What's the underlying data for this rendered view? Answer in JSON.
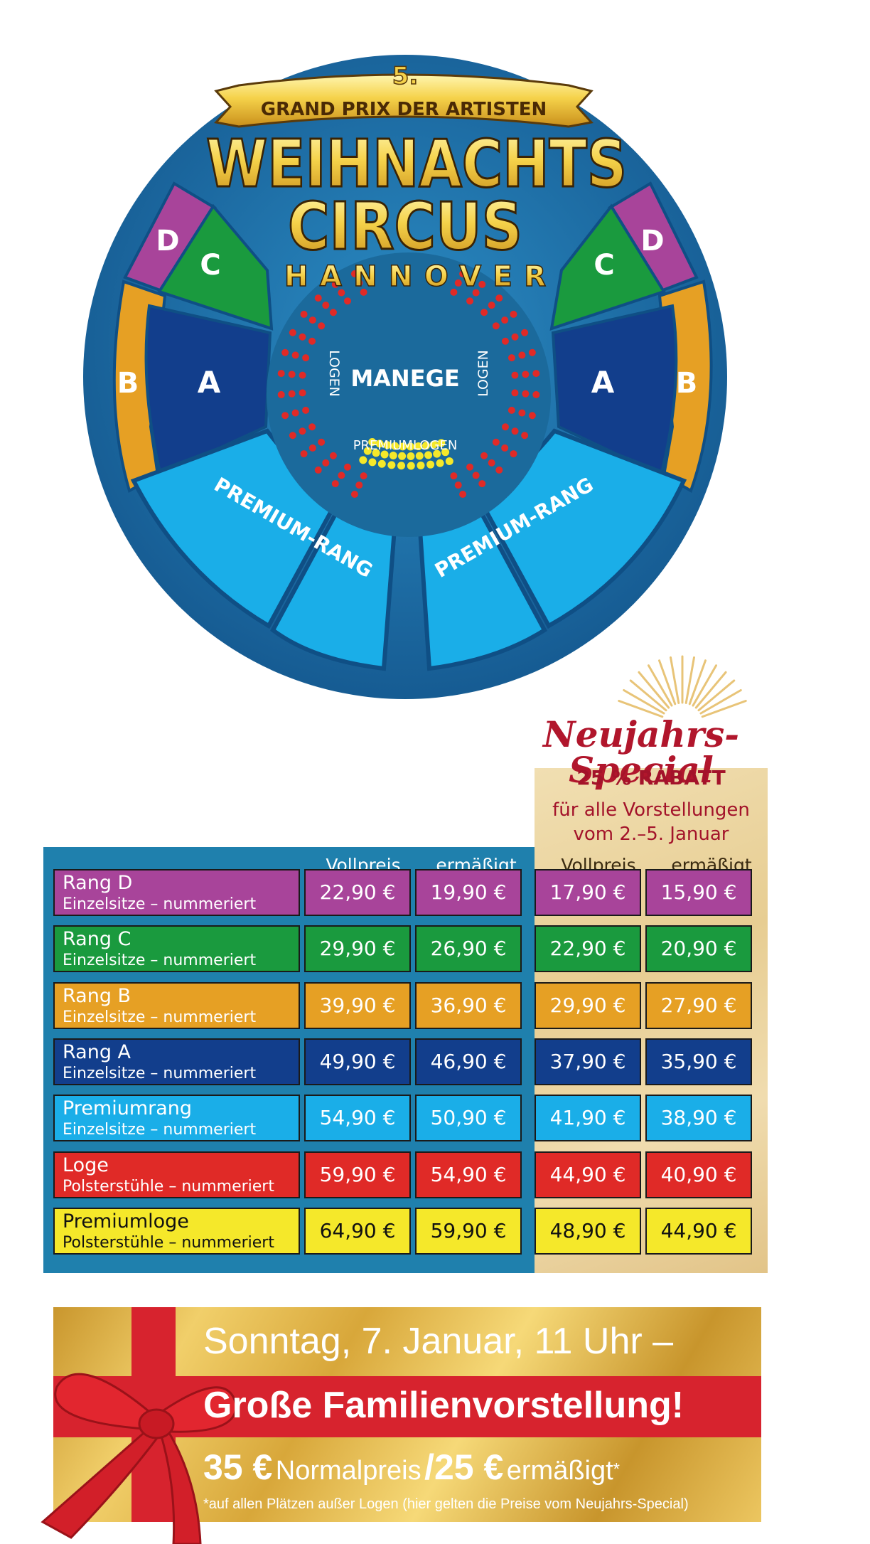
{
  "logo": {
    "number": "5.",
    "banner": "GRAND PRIX DER ARTISTEN",
    "title_line1": "WEIHNACHTS",
    "title_line2": "CIRCUS",
    "city": "HANNOVER"
  },
  "plan": {
    "section_d": "D",
    "section_c": "C",
    "section_b": "B",
    "section_a": "A",
    "manege": "MANEGE",
    "logen": "LOGEN",
    "premiumlogen": "PREMIUMLOGEN",
    "premium_rang_left": "PREMIUM-RANG",
    "premium_rang_right": "PREMIUM-RANG"
  },
  "colors": {
    "rang_d": "#a8449a",
    "rang_c": "#1a9a3e",
    "rang_b": "#e6a024",
    "rang_a": "#123e8c",
    "premiumrang": "#1aaee8",
    "loge": "#e02a27",
    "premiumloge": "#f5e82a",
    "circle_outer": "#1c6fa8",
    "circle_center": "#1b6a9c"
  },
  "special": {
    "title": "Neujahrs-Special",
    "rabatt": "25 % RABATT",
    "line1": "für alle Vorstellungen",
    "line2": "vom 2.–5. Januar"
  },
  "table": {
    "head_vollpreis": "Vollpreis",
    "head_ermaessigt": "ermäßigt",
    "rows": [
      {
        "name": "Rang D",
        "sub": "Einzelsitze – nummeriert",
        "voll": "22,90 €",
        "erm": "19,90 €",
        "sp_voll": "17,90 €",
        "sp_erm": "15,90 €"
      },
      {
        "name": "Rang C",
        "sub": "Einzelsitze – nummeriert",
        "voll": "29,90 €",
        "erm": "26,90 €",
        "sp_voll": "22,90 €",
        "sp_erm": "20,90 €"
      },
      {
        "name": "Rang B",
        "sub": "Einzelsitze – nummeriert",
        "voll": "39,90 €",
        "erm": "36,90 €",
        "sp_voll": "29,90 €",
        "sp_erm": "27,90 €"
      },
      {
        "name": "Rang A",
        "sub": "Einzelsitze – nummeriert",
        "voll": "49,90 €",
        "erm": "46,90 €",
        "sp_voll": "37,90 €",
        "sp_erm": "35,90 €"
      },
      {
        "name": "Premiumrang",
        "sub": "Einzelsitze – nummeriert",
        "voll": "54,90 €",
        "erm": "50,90 €",
        "sp_voll": "41,90 €",
        "sp_erm": "38,90 €"
      },
      {
        "name": "Loge",
        "sub": "Polsterstühle – nummeriert",
        "voll": "59,90 €",
        "erm": "54,90 €",
        "sp_voll": "44,90 €",
        "sp_erm": "40,90 €"
      },
      {
        "name": "Premiumloge",
        "sub": "Polsterstühle – nummeriert",
        "voll": "64,90 €",
        "erm": "59,90 €",
        "sp_voll": "48,90 €",
        "sp_erm": "44,90 €"
      }
    ]
  },
  "banner": {
    "line1": "Sonntag, 7. Januar, 11 Uhr –",
    "line2": "Große Familienvorstellung!",
    "price1": "35 €",
    "label1": "Normalpreis",
    "slash": "/",
    "price2": "25 €",
    "label2": "ermäßigt",
    "star": "*",
    "note": "*auf allen Plätzen außer Logen (hier gelten die Preise vom Neujahrs-Special)"
  }
}
